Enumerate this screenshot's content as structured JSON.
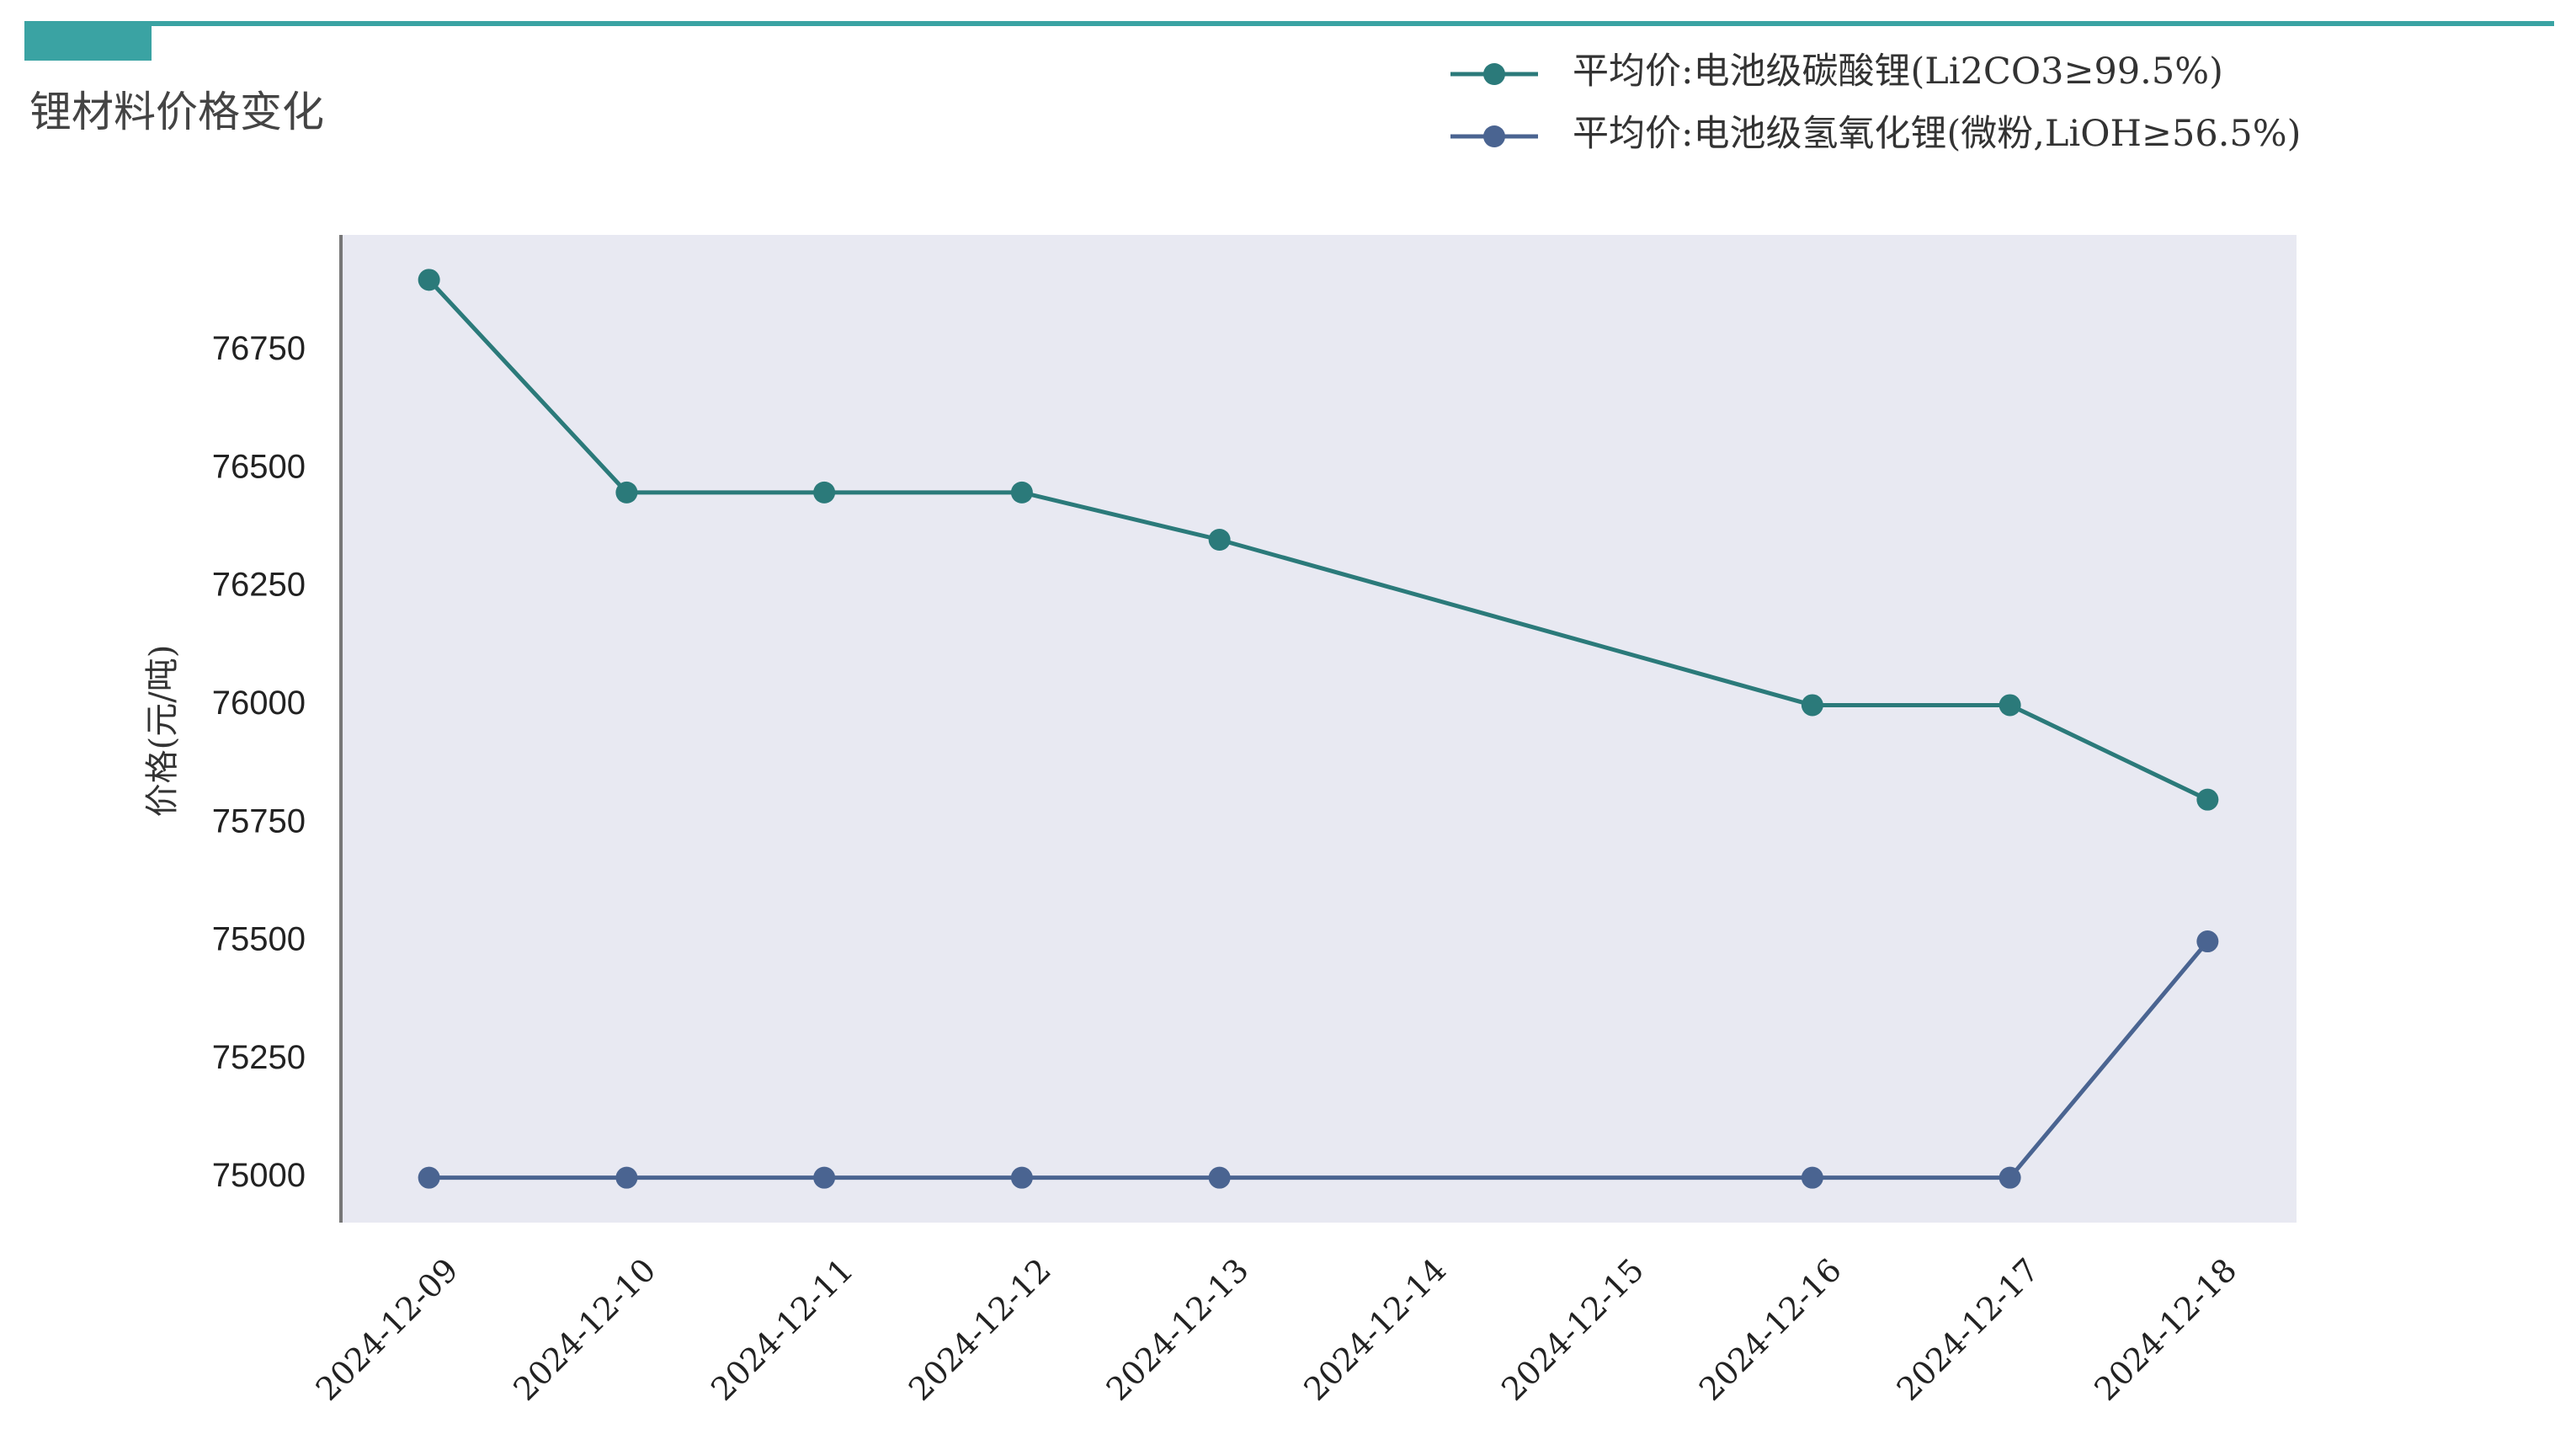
{
  "chart_data": {
    "type": "line",
    "title": "锂材料价格变化",
    "y_label": "价格(元/吨)",
    "x": [
      "2024-12-09",
      "2024-12-10",
      "2024-12-11",
      "2024-12-12",
      "2024-12-13",
      "2024-12-16",
      "2024-12-17",
      "2024-12-18"
    ],
    "xticks": [
      "2024-12-09",
      "2024-12-10",
      "2024-12-11",
      "2024-12-12",
      "2024-12-13",
      "2024-12-14",
      "2024-12-15",
      "2024-12-16",
      "2024-12-17",
      "2024-12-18"
    ],
    "series": [
      {
        "name": "平均价:电池级碳酸锂(Li2CO3≥99.5%)",
        "color": "#2b7a7a",
        "values": [
          76900,
          76450,
          76450,
          76450,
          76350,
          76000,
          76000,
          75800
        ]
      },
      {
        "name": "平均价:电池级氢氧化锂(微粉,LiOH≥56.5%)",
        "color": "#4a6491",
        "values": [
          75000,
          75000,
          75000,
          75000,
          75000,
          75000,
          75000,
          75500
        ]
      }
    ],
    "ylim": [
      74905,
      76995
    ],
    "yticks": [
      75000,
      75250,
      75500,
      75750,
      76000,
      76250,
      76500,
      76750
    ],
    "grid": false
  }
}
